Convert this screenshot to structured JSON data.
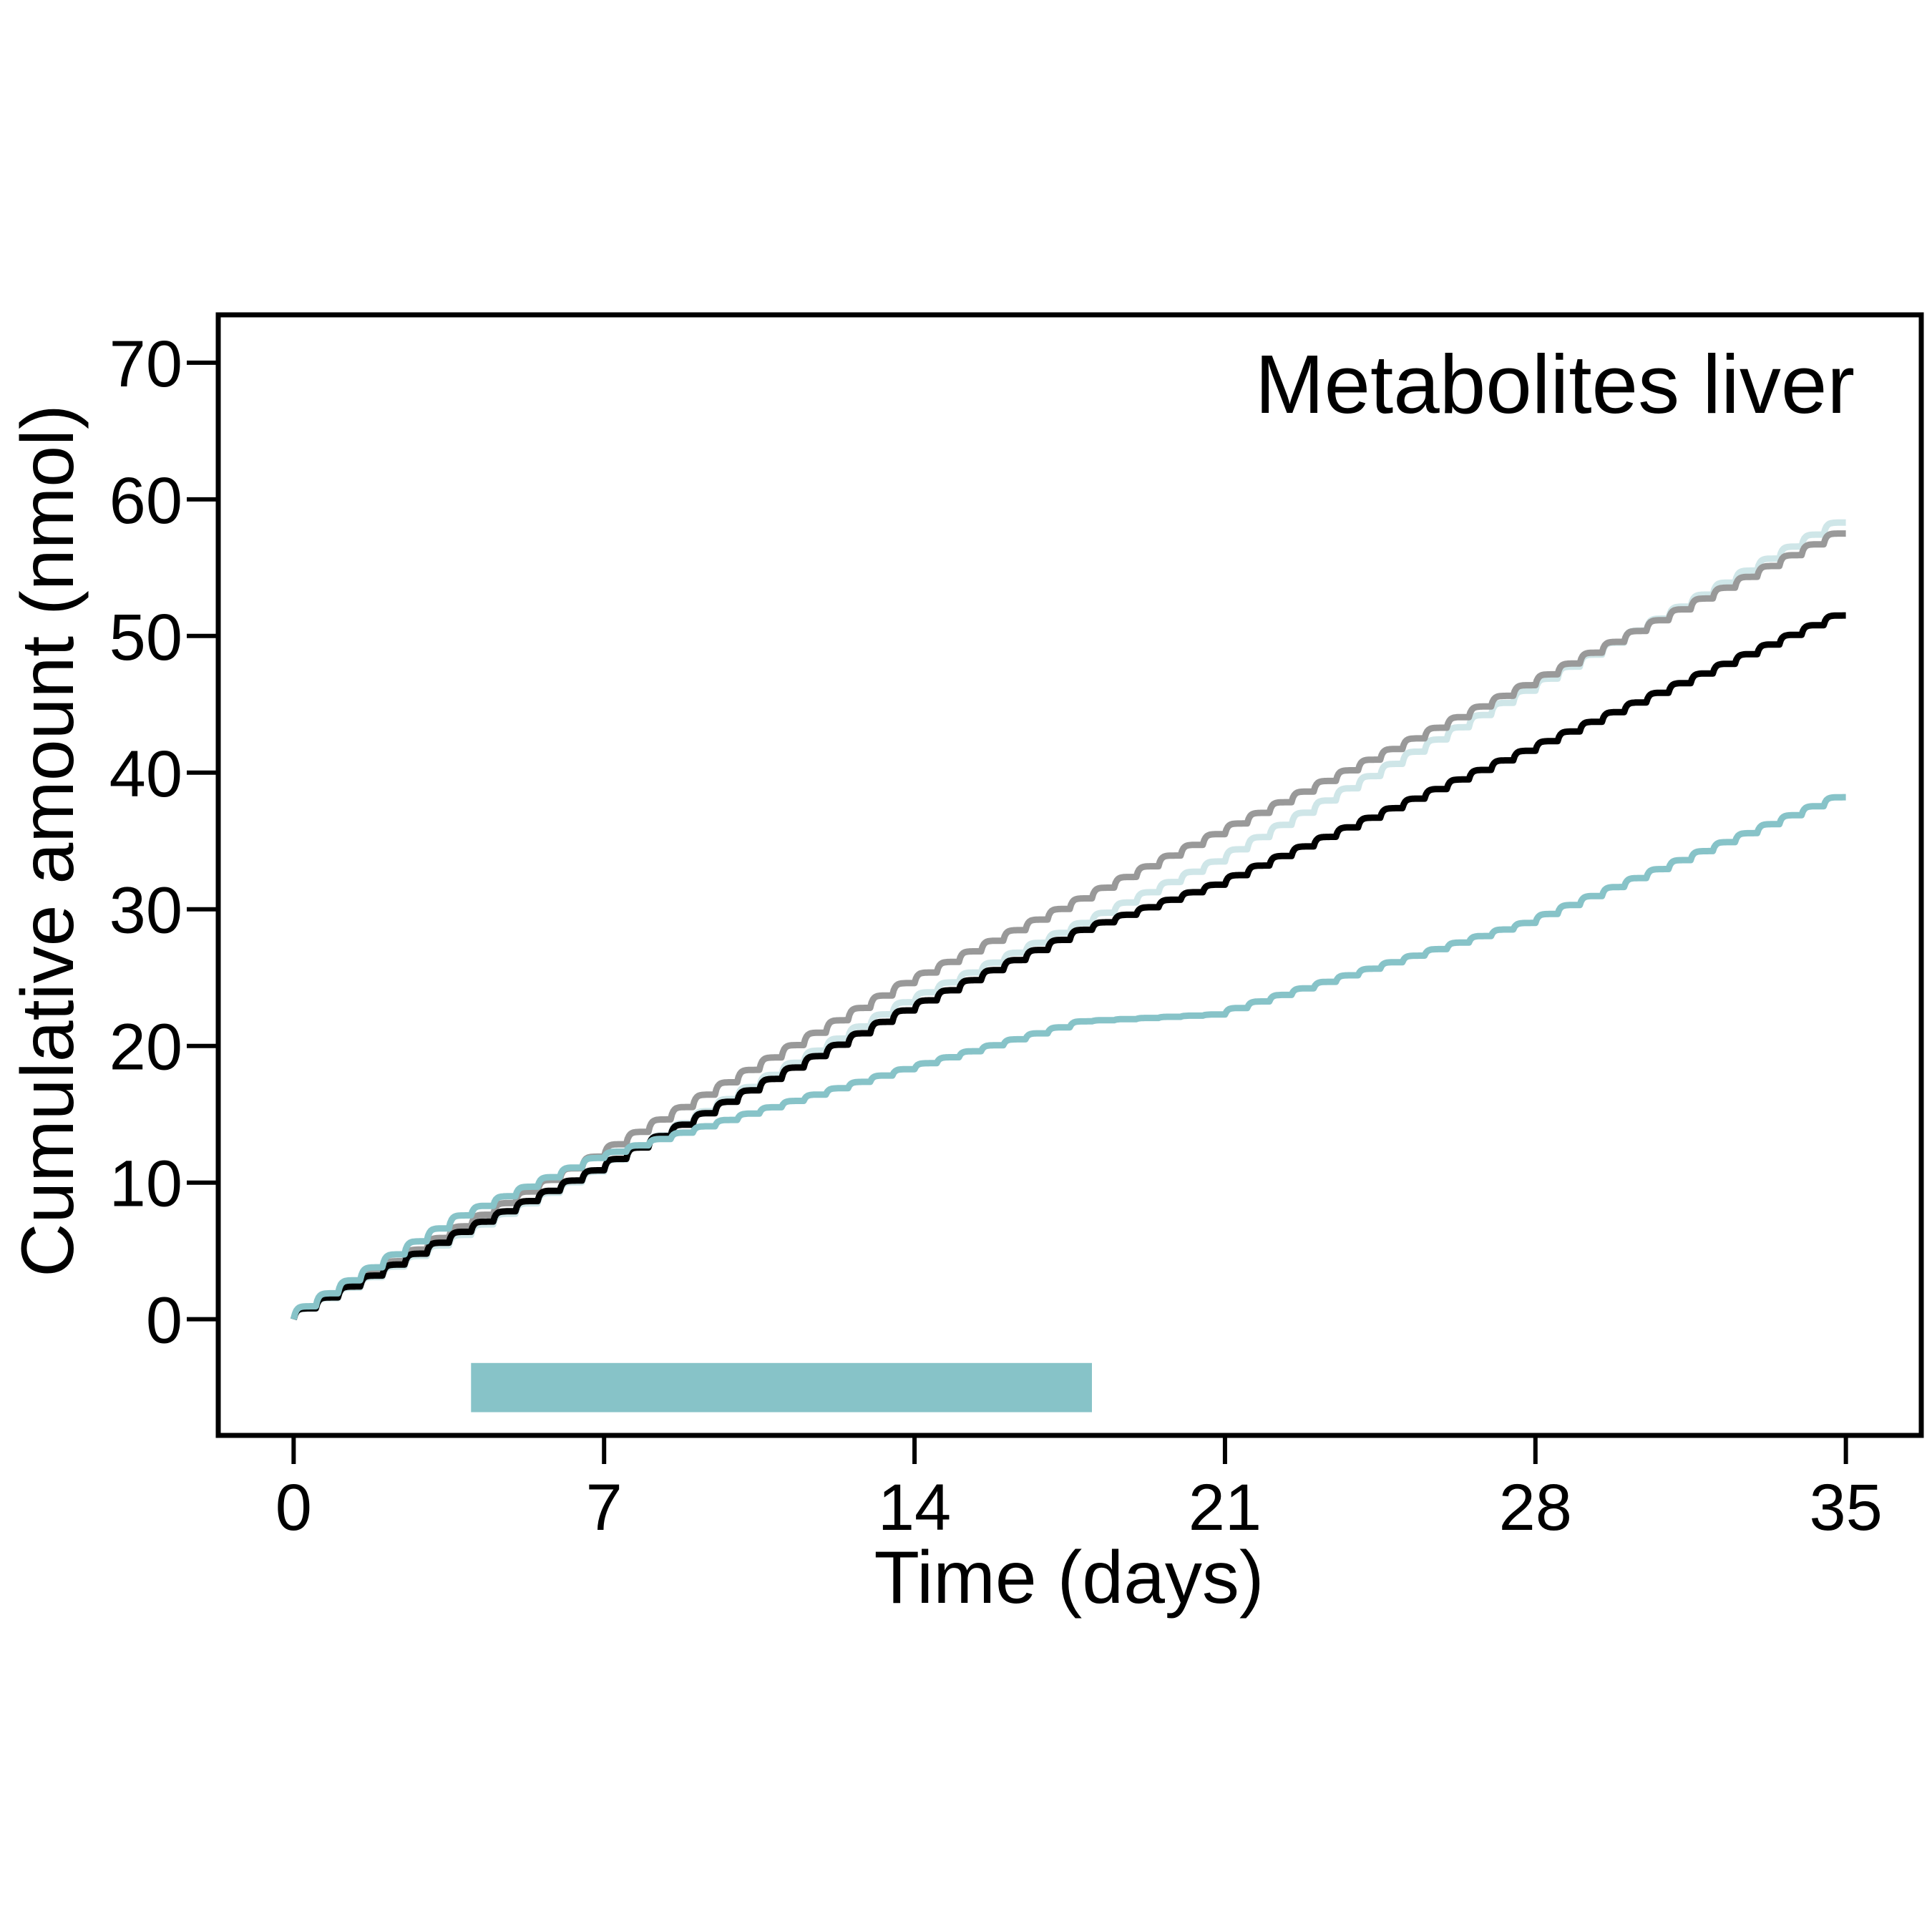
{
  "chart_data": {
    "type": "line",
    "title": "Metabolites liver",
    "xlabel": "Time (days)",
    "ylabel": "Cumulative amount (nmol)",
    "xlim": [
      -1.7,
      36.7
    ],
    "ylim": [
      -8.5,
      73.5
    ],
    "x_ticks": [
      0,
      7,
      14,
      21,
      28,
      35
    ],
    "y_ticks": [
      0,
      10,
      20,
      30,
      40,
      50,
      60,
      70
    ],
    "grid": false,
    "legend": "none",
    "steps_per_day": 2,
    "series": [
      {
        "color": "#cfe6e8",
        "x": [
          0,
          7,
          14,
          18,
          21,
          28,
          35
        ],
        "y": [
          0,
          10.8,
          23.2,
          29.0,
          33.5,
          46.0,
          58.3
        ]
      },
      {
        "color": "#999999",
        "x": [
          0,
          7,
          14,
          18,
          21,
          28,
          35
        ],
        "y": [
          0,
          11.9,
          24.6,
          30.8,
          35.5,
          46.4,
          57.5
        ]
      },
      {
        "color": "#000000",
        "x": [
          0,
          4,
          7,
          14,
          18,
          21,
          28,
          35
        ],
        "y": [
          0,
          6.4,
          10.9,
          22.6,
          28.5,
          31.8,
          41.6,
          51.5
        ]
      },
      {
        "color": "#87c3c8",
        "x": [
          0,
          4,
          7,
          14,
          18,
          21,
          28,
          35
        ],
        "y": [
          0,
          7.6,
          11.8,
          18.3,
          21.8,
          22.3,
          29.0,
          38.2
        ]
      }
    ],
    "bars": [
      {
        "color": "#87c3c8",
        "x_start": 4,
        "x_end": 18,
        "y_low": -6.8,
        "y_high": -3.2
      }
    ]
  }
}
